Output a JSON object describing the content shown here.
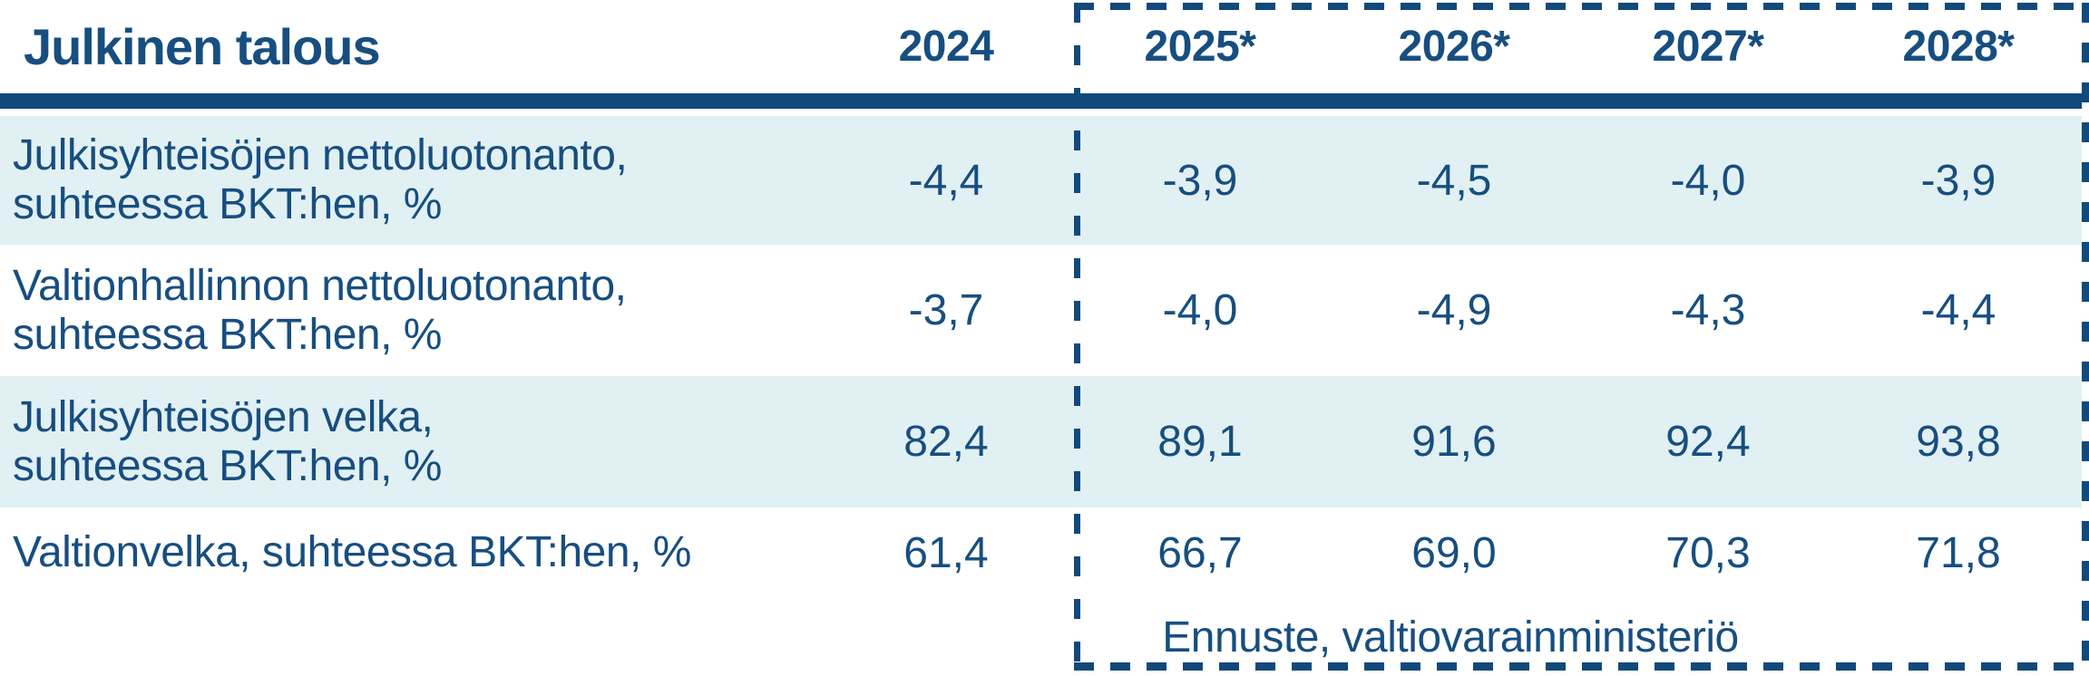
{
  "colors": {
    "accent": "#11497b",
    "text": "#174e80",
    "row_highlight": "#e1f0f2",
    "background": "#ffffff"
  },
  "table": {
    "title": "Julkinen talous",
    "column_headers": [
      "2024",
      "2025*",
      "2026*",
      "2027*",
      "2028*"
    ],
    "rows": [
      {
        "label_line1": "Julkisyhteisöjen nettoluotonanto,",
        "label_line2": "suhteessa BKT:hen, %",
        "values": [
          "-4,4",
          "-3,9",
          "-4,5",
          "-4,0",
          "-3,9"
        ]
      },
      {
        "label_line1": "Valtionhallinnon nettoluotonanto,",
        "label_line2": "suhteessa BKT:hen, %",
        "values": [
          "-3,7",
          "-4,0",
          "-4,9",
          "-4,3",
          "-4,4"
        ]
      },
      {
        "label_line1": "Julkisyhteisöjen velka,",
        "label_line2": "suhteessa BKT:hen, %",
        "values": [
          "82,4",
          "89,1",
          "91,6",
          "92,4",
          "93,8"
        ]
      },
      {
        "label_line1": "Valtionvelka, suhteessa BKT:hen, %",
        "values": [
          "61,4",
          "66,7",
          "69,0",
          "70,3",
          "71,8"
        ]
      }
    ],
    "forecast_note": "Ennuste, valtiovarainministeriö"
  },
  "chart_data": {
    "type": "table",
    "title": "Julkinen talous",
    "categories": [
      "2024",
      "2025*",
      "2026*",
      "2027*",
      "2028*"
    ],
    "forecast_categories": [
      "2025*",
      "2026*",
      "2027*",
      "2028*"
    ],
    "series": [
      {
        "name": "Julkisyhteisöjen nettoluotonanto, suhteessa BKT:hen, %",
        "values": [
          -4.4,
          -3.9,
          -4.5,
          -4.0,
          -3.9
        ]
      },
      {
        "name": "Valtionhallinnon nettoluotonanto, suhteessa BKT:hen, %",
        "values": [
          -3.7,
          -4.0,
          -4.9,
          -4.3,
          -4.4
        ]
      },
      {
        "name": "Julkisyhteisöjen velka, suhteessa BKT:hen, %",
        "values": [
          82.4,
          89.1,
          91.6,
          92.4,
          93.8
        ]
      },
      {
        "name": "Valtionvelka, suhteessa BKT:hen, %",
        "values": [
          61.4,
          66.7,
          69.0,
          70.3,
          71.8
        ]
      }
    ],
    "annotations": [
      "Ennuste, valtiovarainministeriö"
    ]
  }
}
